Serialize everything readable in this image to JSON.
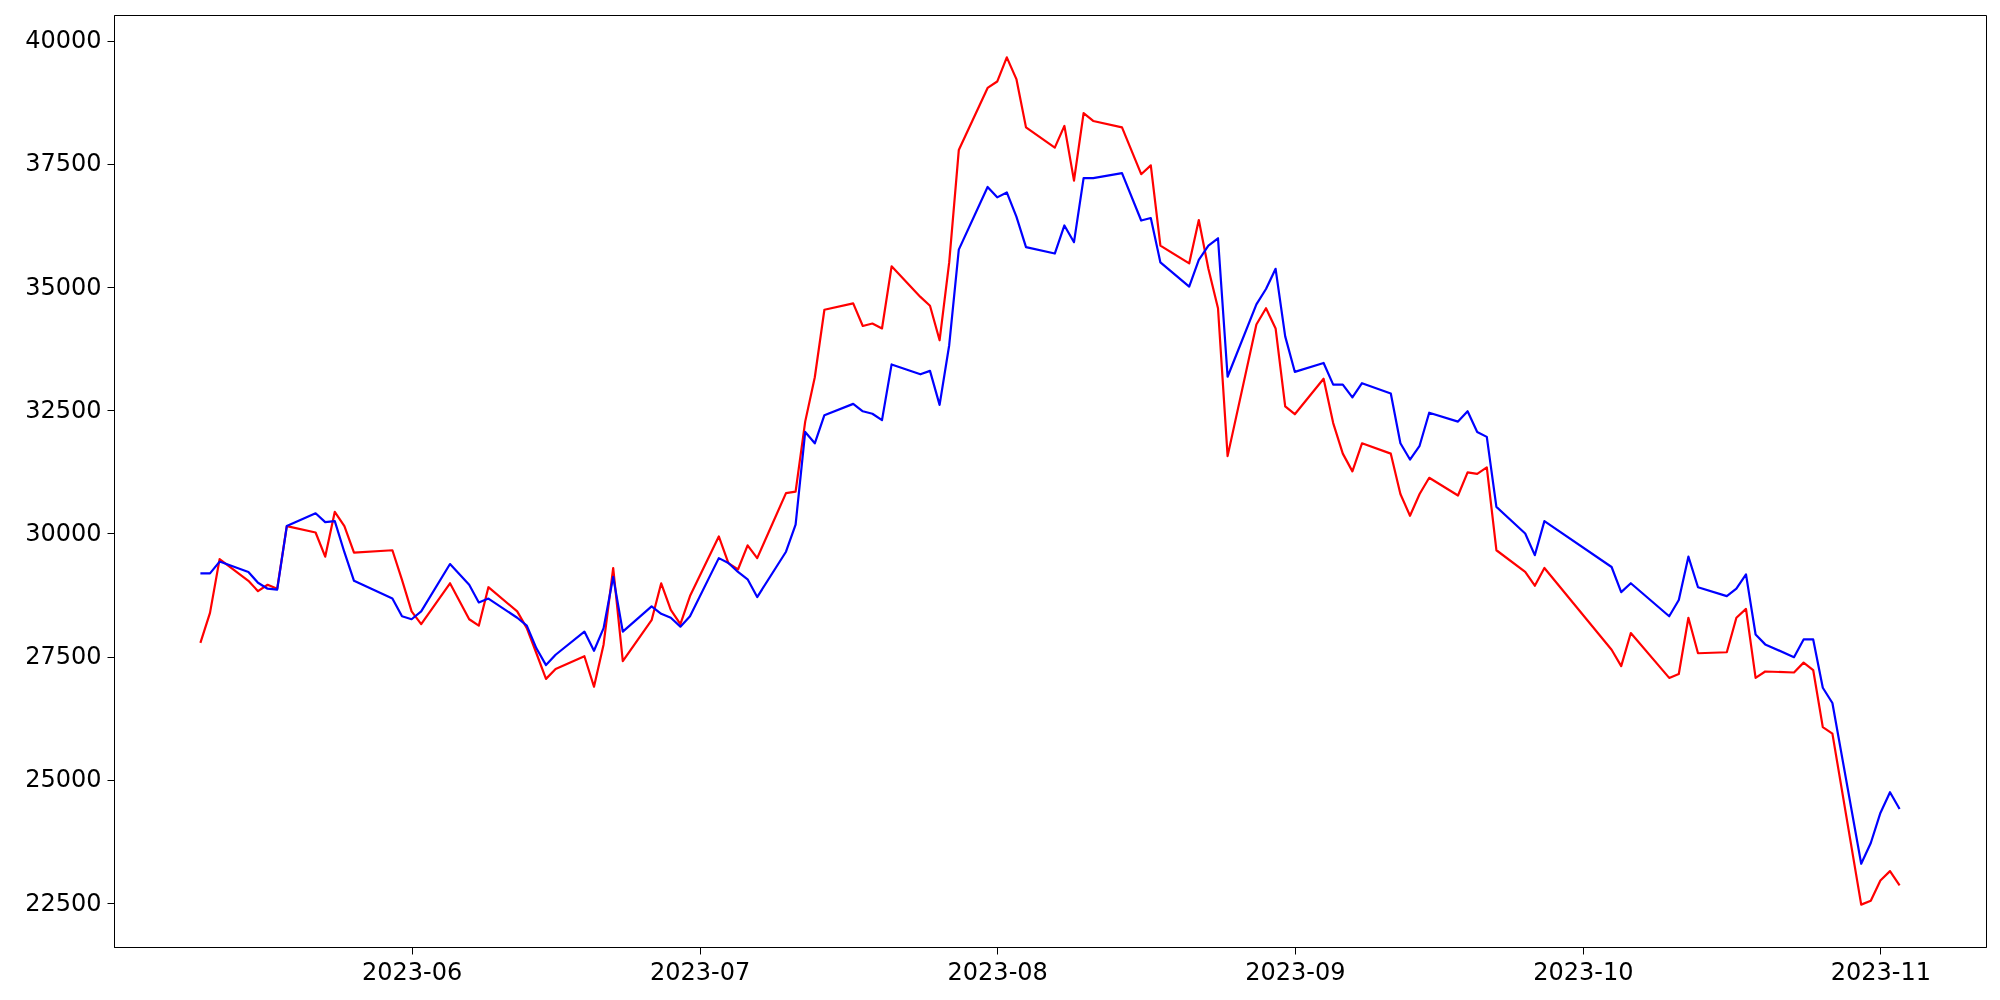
{
  "chart_data": {
    "type": "line",
    "x": [
      "2023-05-10",
      "2023-05-11",
      "2023-05-12",
      "2023-05-15",
      "2023-05-16",
      "2023-05-17",
      "2023-05-18",
      "2023-05-19",
      "2023-05-22",
      "2023-05-23",
      "2023-05-24",
      "2023-05-25",
      "2023-05-26",
      "2023-05-30",
      "2023-05-31",
      "2023-06-01",
      "2023-06-02",
      "2023-06-05",
      "2023-06-07",
      "2023-06-08",
      "2023-06-09",
      "2023-06-12",
      "2023-06-13",
      "2023-06-14",
      "2023-06-15",
      "2023-06-16",
      "2023-06-19",
      "2023-06-20",
      "2023-06-21",
      "2023-06-22",
      "2023-06-23",
      "2023-06-26",
      "2023-06-27",
      "2023-06-28",
      "2023-06-29",
      "2023-06-30",
      "2023-07-03",
      "2023-07-04",
      "2023-07-05",
      "2023-07-06",
      "2023-07-07",
      "2023-07-10",
      "2023-07-11",
      "2023-07-12",
      "2023-07-13",
      "2023-07-14",
      "2023-07-17",
      "2023-07-18",
      "2023-07-19",
      "2023-07-20",
      "2023-07-21",
      "2023-07-24",
      "2023-07-25",
      "2023-07-26",
      "2023-07-27",
      "2023-07-28",
      "2023-07-31",
      "2023-08-01",
      "2023-08-02",
      "2023-08-03",
      "2023-08-04",
      "2023-08-07",
      "2023-08-08",
      "2023-08-09",
      "2023-08-10",
      "2023-08-11",
      "2023-08-14",
      "2023-08-16",
      "2023-08-17",
      "2023-08-18",
      "2023-08-21",
      "2023-08-22",
      "2023-08-23",
      "2023-08-24",
      "2023-08-25",
      "2023-08-28",
      "2023-08-29",
      "2023-08-30",
      "2023-08-31",
      "2023-09-01",
      "2023-09-04",
      "2023-09-05",
      "2023-09-06",
      "2023-09-07",
      "2023-09-08",
      "2023-09-11",
      "2023-09-12",
      "2023-09-13",
      "2023-09-14",
      "2023-09-15",
      "2023-09-18",
      "2023-09-19",
      "2023-09-20",
      "2023-09-21",
      "2023-09-22",
      "2023-09-25",
      "2023-09-26",
      "2023-09-27",
      "2023-10-04",
      "2023-10-05",
      "2023-10-06",
      "2023-10-10",
      "2023-10-11",
      "2023-10-12",
      "2023-10-13",
      "2023-10-16",
      "2023-10-17",
      "2023-10-18",
      "2023-10-19",
      "2023-10-20",
      "2023-10-23",
      "2023-10-24",
      "2023-10-25",
      "2023-10-26",
      "2023-10-27",
      "2023-10-30",
      "2023-10-31",
      "2023-11-01",
      "2023-11-02",
      "2023-11-03"
    ],
    "series": [
      {
        "color": "#ff0000",
        "values": [
          27780,
          28390,
          29480,
          29040,
          28830,
          28960,
          28880,
          30150,
          30020,
          29530,
          30440,
          30150,
          29610,
          29660,
          29060,
          28420,
          28160,
          28990,
          28260,
          28130,
          28910,
          28420,
          28080,
          27570,
          27050,
          27250,
          27510,
          26890,
          27750,
          29300,
          27410,
          28240,
          28990,
          28450,
          28160,
          28730,
          29940,
          29400,
          29270,
          29760,
          29500,
          30820,
          30850,
          32270,
          33170,
          34540,
          34670,
          34210,
          34260,
          34160,
          35420,
          34800,
          34620,
          33920,
          35500,
          37780,
          39040,
          39170,
          39660,
          39220,
          38240,
          37830,
          38270,
          37160,
          38530,
          38370,
          38240,
          37290,
          37470,
          35840,
          35480,
          36360,
          35370,
          34570,
          31570,
          34240,
          34570,
          34160,
          32580,
          32420,
          33140,
          32240,
          31620,
          31260,
          31830,
          31620,
          30800,
          30360,
          30800,
          31130,
          30770,
          31240,
          31210,
          31340,
          29660,
          29220,
          28940,
          29300,
          27640,
          27310,
          27980,
          27070,
          27150,
          28290,
          27570,
          27590,
          28290,
          28470,
          27070,
          27200,
          27180,
          27380,
          27230,
          26070,
          25940,
          22470,
          22550,
          22960,
          23150,
          22860
        ]
      },
      {
        "color": "#0000ff",
        "values": [
          29190,
          29190,
          29430,
          29220,
          29000,
          28880,
          28860,
          30150,
          30410,
          30230,
          30250,
          29620,
          29040,
          28680,
          28320,
          28260,
          28420,
          29380,
          28960,
          28600,
          28680,
          28290,
          28130,
          27670,
          27330,
          27540,
          28010,
          27620,
          28080,
          29120,
          28010,
          28520,
          28370,
          28290,
          28110,
          28320,
          29500,
          29400,
          29220,
          29070,
          28710,
          29630,
          30180,
          32060,
          31830,
          32400,
          32630,
          32480,
          32430,
          32300,
          33430,
          33230,
          33300,
          32610,
          33820,
          35760,
          37030,
          36820,
          36920,
          36430,
          35810,
          35680,
          36250,
          35910,
          37210,
          37210,
          37310,
          36350,
          36400,
          35500,
          35010,
          35550,
          35840,
          35990,
          33180,
          34650,
          34960,
          35370,
          34000,
          33280,
          33460,
          33020,
          33020,
          32760,
          33050,
          32840,
          31830,
          31500,
          31780,
          32450,
          32270,
          32480,
          32060,
          31960,
          30540,
          30000,
          29560,
          30250,
          29320,
          28810,
          28990,
          28320,
          28650,
          29530,
          28910,
          28730,
          28880,
          29170,
          27950,
          27750,
          27490,
          27850,
          27850,
          26870,
          26560,
          23300,
          23720,
          24330,
          24750,
          24410
        ]
      }
    ],
    "xlim": [
      "2023-05-01",
      "2023-11-12"
    ],
    "xticks": [
      {
        "value": "2023-06-01",
        "label": "2023-06"
      },
      {
        "value": "2023-07-01",
        "label": "2023-07"
      },
      {
        "value": "2023-08-01",
        "label": "2023-08"
      },
      {
        "value": "2023-09-01",
        "label": "2023-09"
      },
      {
        "value": "2023-10-01",
        "label": "2023-10"
      },
      {
        "value": "2023-11-01",
        "label": "2023-11"
      }
    ],
    "ylim": [
      21610,
      40520
    ],
    "yticks": [
      22500,
      25000,
      27500,
      30000,
      32500,
      35000,
      37500,
      40000
    ],
    "grid": false,
    "marker": "none",
    "line_style": "solid"
  }
}
